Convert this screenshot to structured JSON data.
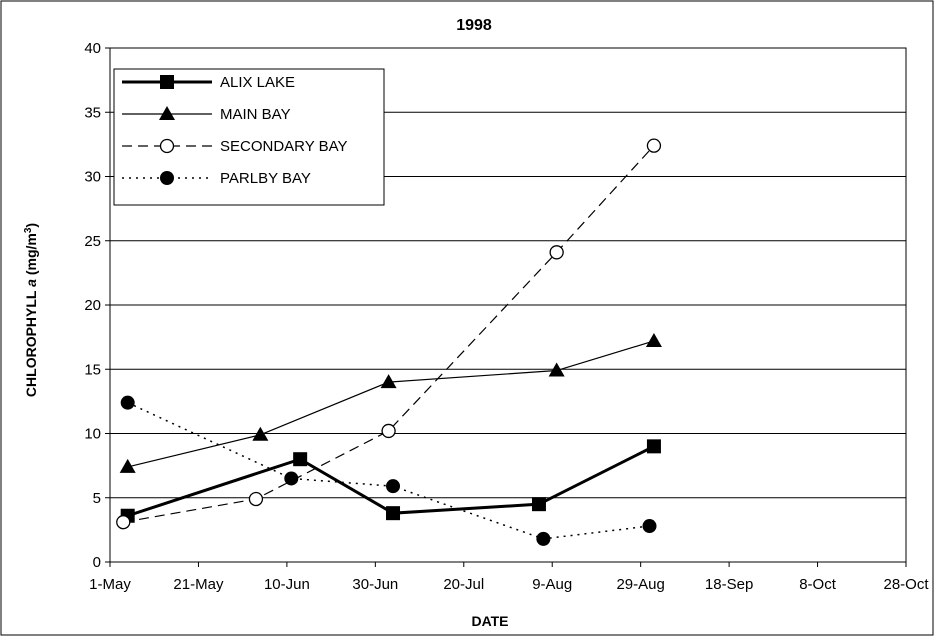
{
  "chart_data": {
    "type": "line",
    "title": "1998",
    "xlabel": "DATE",
    "ylabel": {
      "prefix": "CHLOROPHYLL ",
      "italic": "a",
      "units": "(mg/m",
      "sup": "3",
      "close": ")"
    },
    "x_tick_labels": [
      "1-May",
      "21-May",
      "10-Jun",
      "30-Jun",
      "20-Jul",
      "9-Aug",
      "29-Aug",
      "18-Sep",
      "8-Oct",
      "28-Oct"
    ],
    "x_ticks_days_from_1_May": [
      0,
      20,
      40,
      60,
      80,
      100,
      120,
      140,
      160,
      180
    ],
    "xlim": [
      "1-May",
      "28-Oct"
    ],
    "ylim": [
      0,
      40
    ],
    "y_ticks": [
      0,
      5,
      10,
      15,
      20,
      25,
      30,
      35,
      40
    ],
    "grid": "horizontal",
    "legend_position": "top-left",
    "series": [
      {
        "name": "ALIX LAKE",
        "marker": "square",
        "line": "solid-thick",
        "points": [
          [
            "5-May",
            3.6
          ],
          [
            "13-Jun",
            8.0
          ],
          [
            "4-Jul",
            3.8
          ],
          [
            "6-Aug",
            4.5
          ],
          [
            "1-Sep",
            9.0
          ]
        ]
      },
      {
        "name": "MAIN BAY",
        "marker": "triangle",
        "line": "solid",
        "points": [
          [
            "5-May",
            7.4
          ],
          [
            "4-Jun",
            9.9
          ],
          [
            "3-Jul",
            14.0
          ],
          [
            "10-Aug",
            14.9
          ],
          [
            "1-Sep",
            17.2
          ]
        ]
      },
      {
        "name": "SECONDARY BAY",
        "marker": "circle-open",
        "line": "dashed",
        "points": [
          [
            "4-May",
            3.1
          ],
          [
            "3-Jun",
            4.9
          ],
          [
            "3-Jul",
            10.2
          ],
          [
            "10-Aug",
            24.1
          ],
          [
            "1-Sep",
            32.4
          ]
        ]
      },
      {
        "name": "PARLBY BAY",
        "marker": "circle-filled",
        "line": "dotted",
        "points": [
          [
            "5-May",
            12.4
          ],
          [
            "11-Jun",
            6.5
          ],
          [
            "4-Jul",
            5.9
          ],
          [
            "7-Aug",
            1.8
          ],
          [
            "31-Aug",
            2.8
          ]
        ]
      }
    ]
  }
}
